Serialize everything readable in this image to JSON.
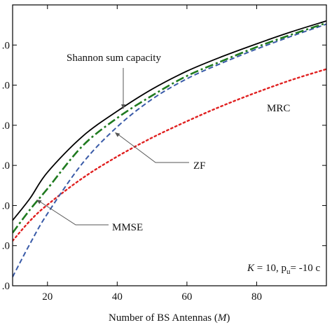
{
  "chart_data": {
    "type": "line",
    "title": "",
    "xlabel_prefix": "Number of BS Antennas (",
    "xlabel_var": "M",
    "xlabel_suffix": ")",
    "ylabel": "",
    "xlim": [
      10,
      100
    ],
    "ylim": [
      0,
      7
    ],
    "x_ticks": [
      20,
      40,
      60,
      80
    ],
    "x_tick_labels": [
      "20",
      "40",
      "60",
      "80"
    ],
    "y_ticks": [
      0,
      1,
      2,
      3,
      4,
      5,
      6
    ],
    "y_tick_labels": [
      ".0",
      ".0",
      ".0",
      ".0",
      ".0",
      ".0",
      ".0"
    ],
    "x": [
      10,
      15,
      20,
      30,
      40,
      50,
      60,
      70,
      80,
      90,
      100
    ],
    "series": [
      {
        "name": "Shannon sum capacity",
        "color": "#000000",
        "style": "solid",
        "values": [
          1.63,
          2.18,
          2.83,
          3.72,
          4.35,
          4.9,
          5.35,
          5.71,
          6.03,
          6.33,
          6.6
        ]
      },
      {
        "name": "MMSE",
        "color": "#1f7a1f",
        "style": "dashdot",
        "values": [
          1.32,
          1.9,
          2.42,
          3.48,
          4.18,
          4.74,
          5.23,
          5.6,
          5.95,
          6.26,
          6.55
        ]
      },
      {
        "name": "ZF",
        "color": "#3a5ba8",
        "style": "dashed",
        "values": [
          0.22,
          1.05,
          1.8,
          3.05,
          3.96,
          4.65,
          5.16,
          5.55,
          5.9,
          6.22,
          6.52
        ]
      },
      {
        "name": "MRC",
        "color": "#e02020",
        "style": "dotted",
        "values": [
          1.12,
          1.62,
          2.02,
          2.68,
          3.22,
          3.69,
          4.1,
          4.48,
          4.82,
          5.13,
          5.4
        ]
      }
    ],
    "annotations": [
      {
        "text": "Shannon sum capacity",
        "target_series": "Shannon sum capacity"
      },
      {
        "text": "MRC",
        "target_series": "MRC"
      },
      {
        "text": "ZF",
        "target_series": "ZF"
      },
      {
        "text": "MMSE",
        "target_series": "MMSE"
      }
    ],
    "param_label": {
      "k_var": "K",
      "k_text": " = 10, p",
      "sub": "u",
      "rest": "= -10 c"
    },
    "grid": false,
    "legend": "none"
  }
}
